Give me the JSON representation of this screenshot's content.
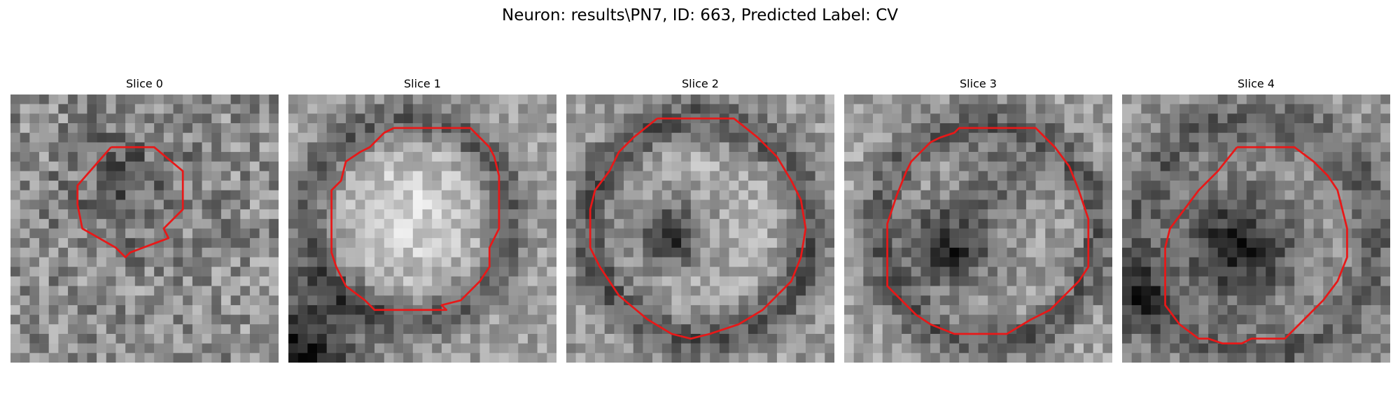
{
  "figure": {
    "title": "Neuron: results\\PN7, ID: 663, Predicted Label: CV",
    "outline_color": "#e81818"
  },
  "slices": [
    {
      "title": "Slice 0"
    },
    {
      "title": "Slice 1"
    },
    {
      "title": "Slice 2"
    },
    {
      "title": "Slice 3"
    },
    {
      "title": "Slice 4"
    }
  ]
}
